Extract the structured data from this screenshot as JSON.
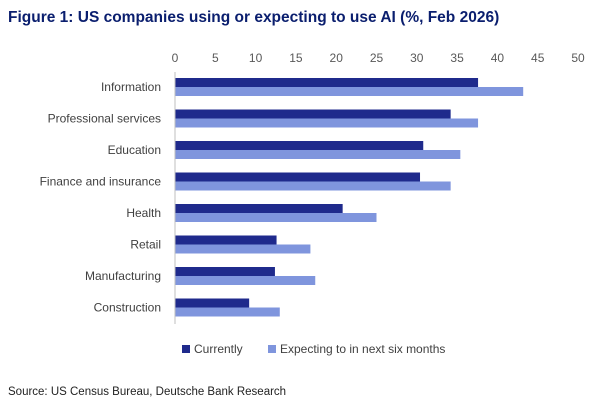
{
  "title": "Figure 1: US companies using or expecting to use AI (%, Feb 2026)",
  "source": "Source: US Census Bureau, Deutsche Bank Research",
  "colors": {
    "currently": "#1f2a8c",
    "expecting": "#7f95dd",
    "title": "#0a1e6e"
  },
  "chart_data": {
    "type": "bar",
    "orientation": "horizontal",
    "title": "Figure 1: US companies using or expecting to use AI (%, Feb 2026)",
    "xlim": [
      0,
      50
    ],
    "xticks": [
      0,
      5,
      10,
      15,
      20,
      25,
      30,
      35,
      40,
      45,
      50
    ],
    "xaxis_position": "top",
    "grid": false,
    "legend_position": "bottom",
    "categories": [
      "Information",
      "Professional services",
      "Education",
      "Finance and insurance",
      "Health",
      "Retail",
      "Manufacturing",
      "Construction"
    ],
    "series": [
      {
        "name": "Currently",
        "values": [
          37.6,
          34.2,
          30.8,
          30.4,
          20.8,
          12.6,
          12.4,
          9.2
        ]
      },
      {
        "name": "Expecting to in next six months",
        "values": [
          43.2,
          37.6,
          35.4,
          34.2,
          25.0,
          16.8,
          17.4,
          13.0
        ]
      }
    ]
  }
}
